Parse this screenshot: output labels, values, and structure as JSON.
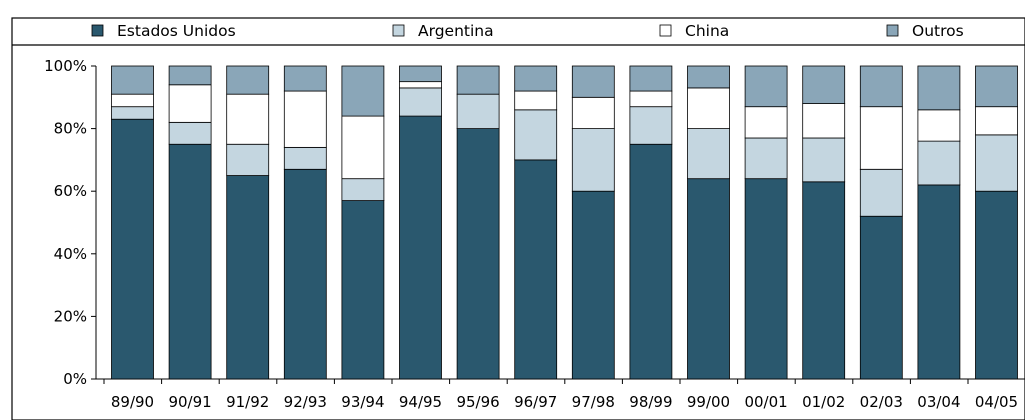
{
  "title": "",
  "chart_data": {
    "type": "bar",
    "stacked": true,
    "percent": true,
    "title": "",
    "xlabel": "",
    "ylabel": "",
    "ylim": [
      0,
      100
    ],
    "yticks": [
      "0%",
      "20%",
      "40%",
      "60%",
      "80%",
      "100%"
    ],
    "categories": [
      "89/90",
      "90/91",
      "91/92",
      "92/93",
      "93/94",
      "94/95",
      "95/96",
      "96/97",
      "97/98",
      "98/99",
      "99/00",
      "00/01",
      "01/02",
      "02/03",
      "03/04",
      "04/05"
    ],
    "series": [
      {
        "name": "Estados Unidos",
        "color": "#2A586E",
        "values": [
          83,
          75,
          65,
          67,
          57,
          84,
          80,
          70,
          60,
          75,
          64,
          64,
          63,
          52,
          62,
          60
        ]
      },
      {
        "name": "Argentina",
        "color": "#C4D6E0",
        "values": [
          4,
          7,
          10,
          7,
          7,
          9,
          11,
          16,
          20,
          12,
          16,
          13,
          14,
          15,
          14,
          18
        ]
      },
      {
        "name": "China",
        "color": "#FFFFFF",
        "values": [
          4,
          12,
          16,
          18,
          20,
          2,
          0,
          6,
          10,
          5,
          13,
          10,
          11,
          20,
          10,
          9
        ]
      },
      {
        "name": "Outros",
        "color": "#8AA6B8",
        "values": [
          9,
          6,
          9,
          8,
          16,
          5,
          9,
          8,
          10,
          8,
          7,
          13,
          12,
          13,
          14,
          13
        ]
      }
    ],
    "legend_position": "top",
    "grid": false
  }
}
